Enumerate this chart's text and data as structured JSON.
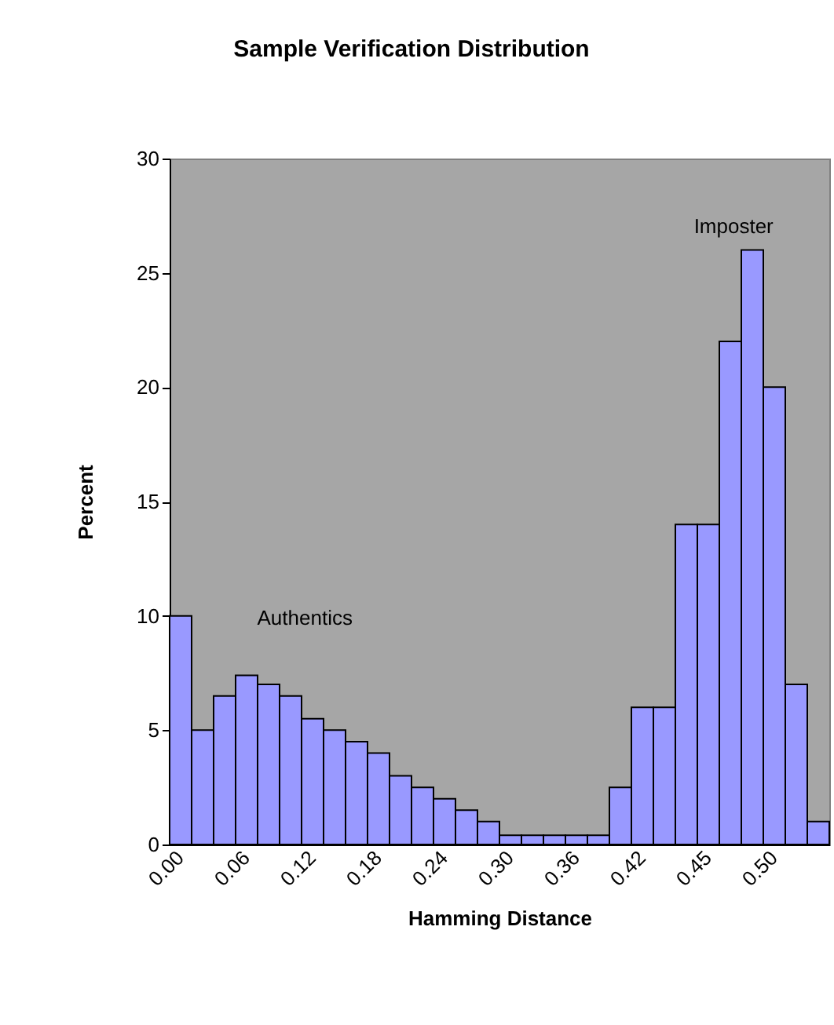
{
  "chart_data": {
    "type": "bar",
    "title": "Sample Verification Distribution",
    "xlabel": "Hamming Distance",
    "ylabel": "Percent",
    "categories": [
      "0.00",
      null,
      null,
      "0.06",
      null,
      null,
      "0.12",
      null,
      null,
      "0.18",
      null,
      null,
      "0.24",
      null,
      null,
      "0.30",
      null,
      null,
      "0.36",
      null,
      null,
      "0.42",
      null,
      null,
      "0.45",
      null,
      null,
      "0.50",
      null,
      null
    ],
    "values": [
      10,
      5,
      6.5,
      7.4,
      7,
      6.5,
      5.5,
      5,
      4.5,
      4,
      3,
      2.5,
      2,
      1.5,
      1,
      0.4,
      0.4,
      0.4,
      0.4,
      0.4,
      2.5,
      6,
      6,
      14,
      14,
      22,
      26,
      20,
      7,
      1
    ],
    "color": "#9999ff",
    "ylim": [
      0,
      30
    ],
    "yticks": [
      0,
      5,
      10,
      15,
      20,
      25,
      30
    ],
    "annotations": [
      "Authentics",
      "Imposter"
    ]
  }
}
